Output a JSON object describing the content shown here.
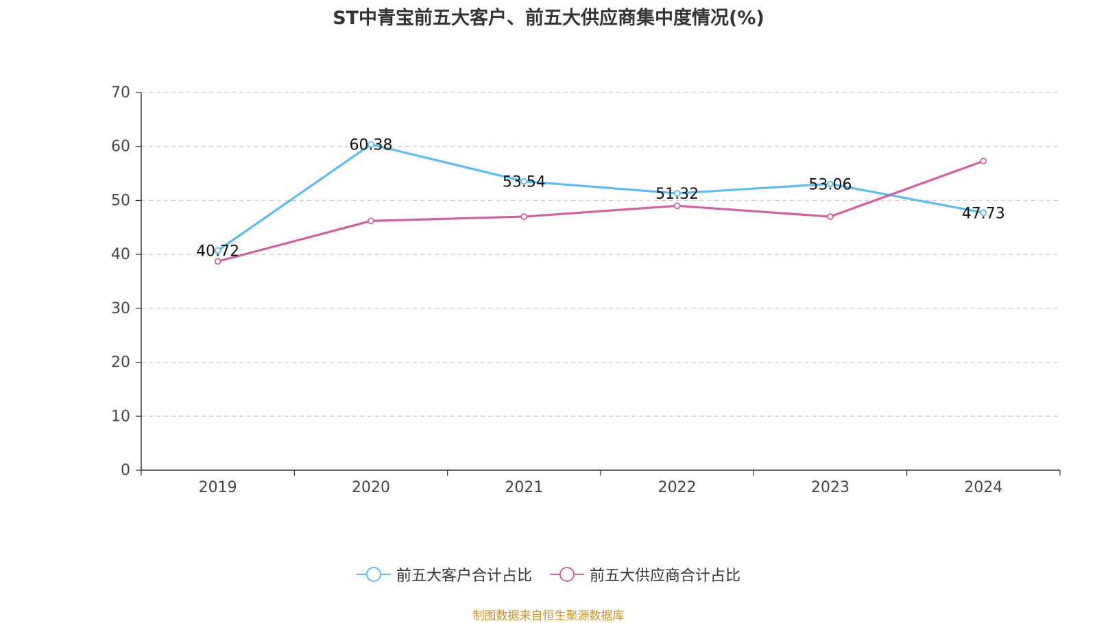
{
  "chart_data": {
    "type": "line",
    "title": "ST中青宝前五大客户、前五大供应商集中度情况(%)",
    "categories": [
      "2019",
      "2020",
      "2021",
      "2022",
      "2023",
      "2024"
    ],
    "ylim": [
      0,
      70
    ],
    "yticks": [
      "0",
      "10",
      "20",
      "30",
      "40",
      "50",
      "60",
      "70"
    ],
    "grid": true,
    "legend_position": "bottom",
    "series": [
      {
        "name": "前五大客户合计占比",
        "color": "#5bbcf0",
        "values": [
          40.72,
          60.38,
          53.54,
          51.32,
          53.06,
          47.73
        ],
        "labels": [
          "40.72",
          "60.38",
          "53.54",
          "51.32",
          "53.06",
          "47.73"
        ]
      },
      {
        "name": "前五大供应商合计占比",
        "color": "#d0609f",
        "values": [
          38.7,
          46.2,
          47.0,
          49.0,
          47.0,
          57.3
        ],
        "labels": []
      }
    ],
    "source": "制图数据来自恒生聚源数据库"
  }
}
